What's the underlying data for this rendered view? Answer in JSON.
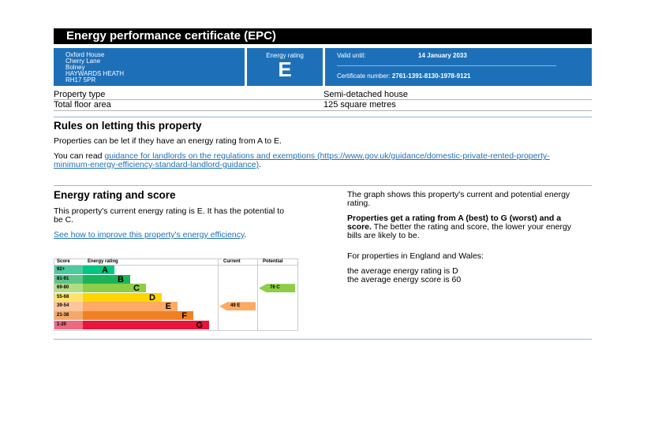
{
  "title": "Energy performance certificate (EPC)",
  "address": [
    "Oxford House",
    "Cherry Lane",
    "Bolney",
    "HAYWARDS HEATH",
    "RH17 5PR"
  ],
  "rating": {
    "label": "Energy rating",
    "value": "E"
  },
  "cert": {
    "valid_label": "Valid until:",
    "valid_value": "14 January 2033",
    "number_label": "Certificate number:",
    "number_value": "2761-1391-8130-1978-9121"
  },
  "property": [
    {
      "label": "Property type",
      "value": "Semi-detached house"
    },
    {
      "label": "Total floor area",
      "value": "125 square metres"
    }
  ],
  "rules": {
    "heading": "Rules on letting this property",
    "p1": "Properties can be let if they have an energy rating from A to E.",
    "p2_prefix": "You can read ",
    "link": "guidance for landlords on the regulations and exemptions (https://www.gov.uk/guidance/domestic-private-rented-property-minimum-energy-efficiency-standard-landlord-guidance)",
    "p2_suffix": "."
  },
  "score_section": {
    "heading": "Energy rating and score",
    "p1": "This property's current energy rating is E. It has the potential to be C.",
    "link": "See how to improve this property's energy efficiency",
    "link_suffix": ".",
    "right_p1": "The graph shows this property's current and potential energy rating.",
    "right_p2_bold": "Properties get a rating from A (best) to G (worst) and a score.",
    "right_p2": " The better the rating and score, the lower your energy bills are likely to be.",
    "right_p3": "For properties in England and Wales:",
    "right_p4": "the average energy rating is D",
    "right_p5": "the average energy score is 60"
  },
  "chart_data": {
    "type": "bar",
    "headers": {
      "score": "Score",
      "rating": "Energy rating",
      "current": "Current",
      "potential": "Potential"
    },
    "bands": [
      {
        "score": "92+",
        "letter": "A",
        "color": "#00c781",
        "scolor": "#4fc9a0"
      },
      {
        "score": "81-91",
        "letter": "B",
        "color": "#19b459",
        "scolor": "#5ec48a"
      },
      {
        "score": "69-80",
        "letter": "C",
        "color": "#8dce46",
        "scolor": "#b3dd85"
      },
      {
        "score": "55-68",
        "letter": "D",
        "color": "#ffd500",
        "scolor": "#ffe36a"
      },
      {
        "score": "39-54",
        "letter": "E",
        "color": "#fcaa65",
        "scolor": "#fdc69a"
      },
      {
        "score": "21-38",
        "letter": "F",
        "color": "#ef8023",
        "scolor": "#f4a96a"
      },
      {
        "score": "1-20",
        "letter": "G",
        "color": "#e9153b",
        "scolor": "#f0677f"
      }
    ],
    "current": {
      "score": 49,
      "letter": "E",
      "label": "49  E",
      "color": "#fcaa65"
    },
    "potential": {
      "score": 76,
      "letter": "C",
      "label": "76  C",
      "color": "#8dce46"
    }
  }
}
